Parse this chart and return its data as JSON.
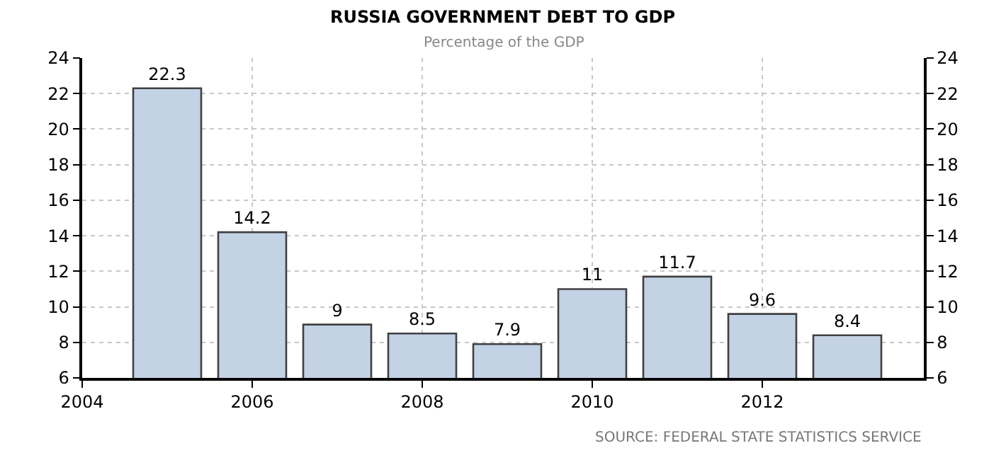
{
  "chart_data": {
    "type": "bar",
    "title": "RUSSIA GOVERNMENT DEBT TO GDP",
    "subtitle": "Percentage of the GDP",
    "x": [
      2005,
      2006,
      2007,
      2008,
      2009,
      2010,
      2011,
      2012,
      2013
    ],
    "values": [
      22.3,
      14.2,
      9,
      8.5,
      7.9,
      11,
      11.7,
      9.6,
      8.4
    ],
    "color": "#c4d2e6",
    "data_labels": true,
    "xlim": [
      2004,
      2013.9
    ],
    "xticks": [
      2004,
      2006,
      2008,
      2010,
      2012
    ],
    "ylim": [
      6,
      24
    ],
    "yticks": [
      6,
      8,
      10,
      12,
      14,
      16,
      18,
      20,
      22,
      24
    ],
    "y2lim": [
      6,
      24
    ],
    "y2ticks": [
      6,
      8,
      10,
      12,
      14,
      16,
      18,
      20,
      22,
      24
    ],
    "grid": true,
    "annotations": [
      "SOURCE: FEDERAL STATE STATISTICS SERVICE"
    ]
  }
}
